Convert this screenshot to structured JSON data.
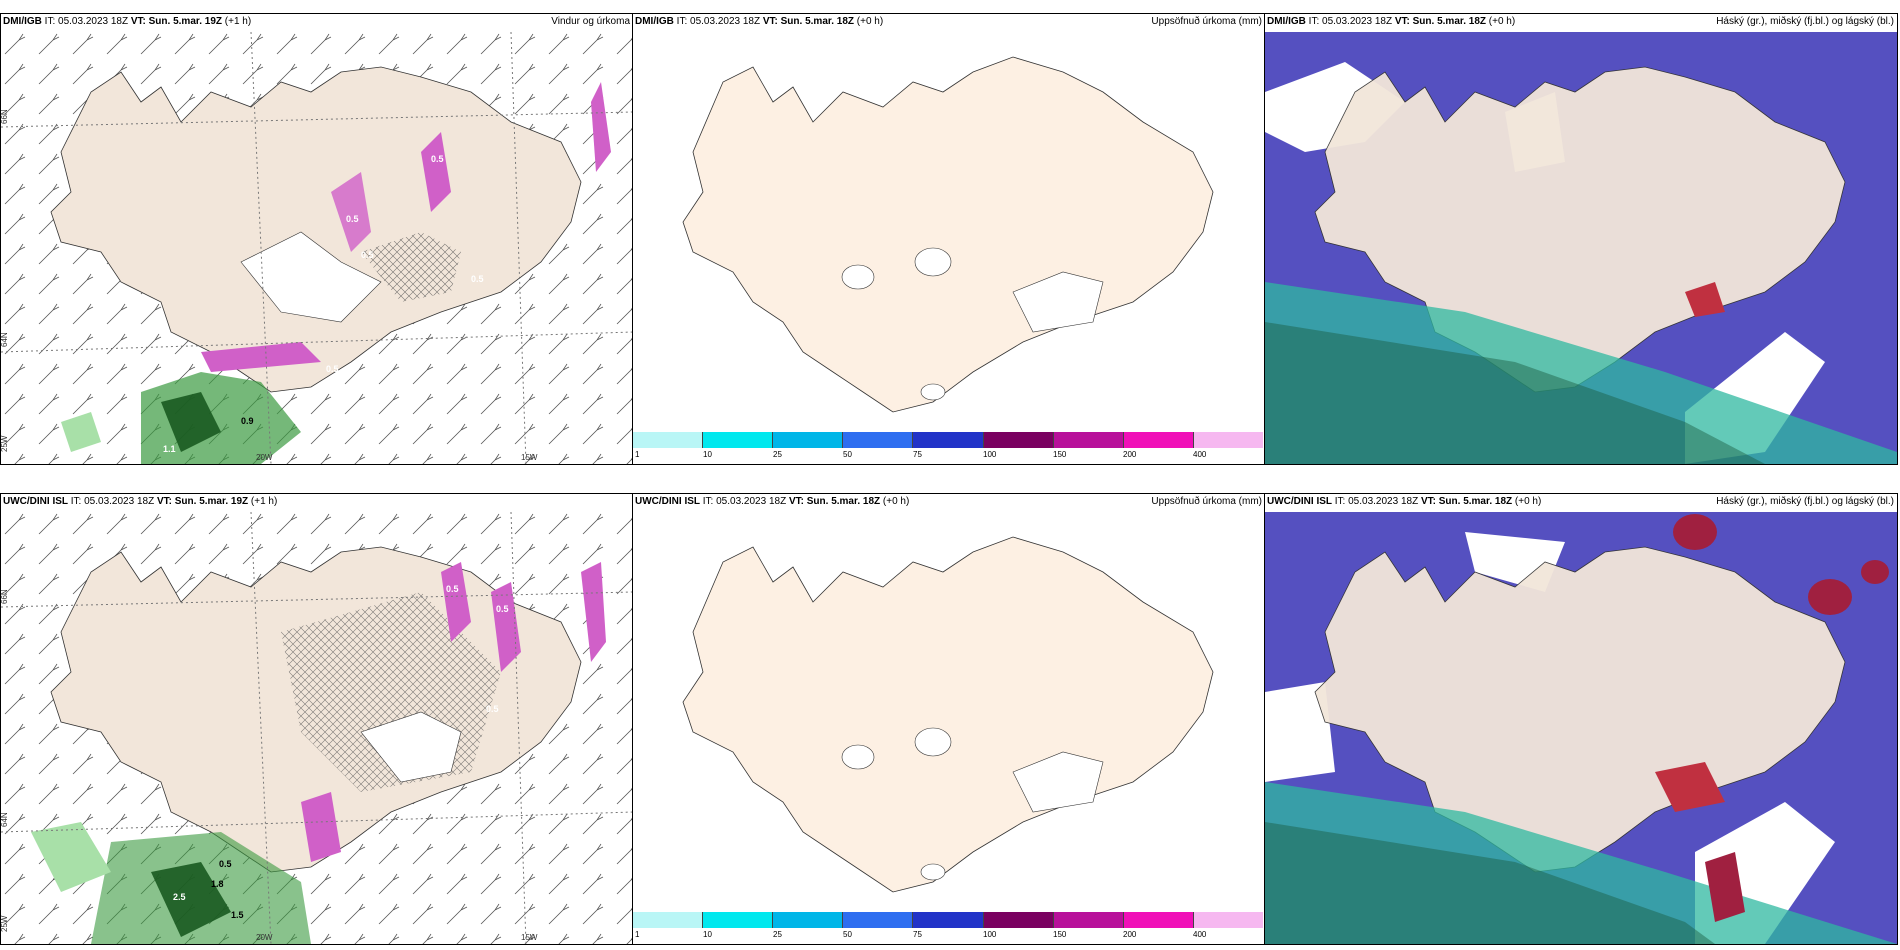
{
  "panels": {
    "top_left": {
      "model": "DMI/IGB",
      "it_label": "IT:",
      "it_value": "05.03.2023 18Z",
      "vt_label": "VT:",
      "vt_value": "Sun. 5.mar. 19Z",
      "lead": "(+1 h)",
      "right_title": "Vindur og úrkoma",
      "lat_labels": [
        "66N",
        "64N"
      ],
      "lon_labels": [
        "25W",
        "20W",
        "15W"
      ],
      "values": [
        "0.9",
        "1.1",
        "0.5",
        "0.5",
        "0.5",
        "0.5",
        "0.5"
      ]
    },
    "top_mid": {
      "model": "DMI/IGB",
      "it_label": "IT:",
      "it_value": "05.03.2023 18Z",
      "vt_label": "VT:",
      "vt_value": "Sun. 5.mar. 18Z",
      "lead": "(+0 h)",
      "right_title": "Uppsöfnuð úrkoma (mm)"
    },
    "top_right": {
      "model": "DMI/IGB",
      "it_label": "IT:",
      "it_value": "05.03.2023 18Z",
      "vt_label": "VT:",
      "vt_value": "Sun. 5.mar. 18Z",
      "lead": "(+0 h)",
      "right_title": "Háský (gr.), miðský (fj.bl.) og lágský (bl.)"
    },
    "bot_left": {
      "model": "UWC/DINI ISL",
      "it_label": "IT:",
      "it_value": "05.03.2023 18Z",
      "vt_label": "VT:",
      "vt_value": "Sun. 5.mar. 19Z",
      "lead": "(+1 h)",
      "right_title": "",
      "lat_labels": [
        "66N",
        "64N"
      ],
      "lon_labels": [
        "25W",
        "20W",
        "15W"
      ],
      "values": [
        "2.5",
        "1.8",
        "0.5",
        "0.5",
        "0.5",
        "0.5",
        "1.5"
      ]
    },
    "bot_mid": {
      "model": "UWC/DINI ISL",
      "it_label": "IT:",
      "it_value": "05.03.2023 18Z",
      "vt_label": "VT:",
      "vt_value": "Sun. 5.mar. 18Z",
      "lead": "(+0 h)",
      "right_title": "Uppsöfnuð úrkoma (mm)"
    },
    "bot_right": {
      "model": "UWC/DINI ISL",
      "it_label": "IT:",
      "it_value": "05.03.2023 18Z",
      "vt_label": "VT:",
      "vt_value": "Sun. 5.mar. 18Z",
      "lead": "(+0 h)",
      "right_title": "Háský (gr.), miðský (fj.bl.) og lágský (bl.)"
    }
  },
  "colorbar": {
    "ticks": [
      "1",
      "10",
      "25",
      "50",
      "75",
      "100",
      "150",
      "200",
      "400"
    ],
    "colors": [
      "#b9f6f6",
      "#00e8ee",
      "#00b6e8",
      "#2e6ef0",
      "#2233c8",
      "#7a0060",
      "#b8109a",
      "#f010b8",
      "#f6b8f0"
    ]
  },
  "colors": {
    "land": "#f2e6da",
    "land_mid": "#fdf0e3",
    "low_cloud": "#5550c0",
    "mid_cloud": "#2fb8a0",
    "high_cloud": "#1a6a40",
    "precip": "#d060c8",
    "green": "#3a9a40"
  }
}
